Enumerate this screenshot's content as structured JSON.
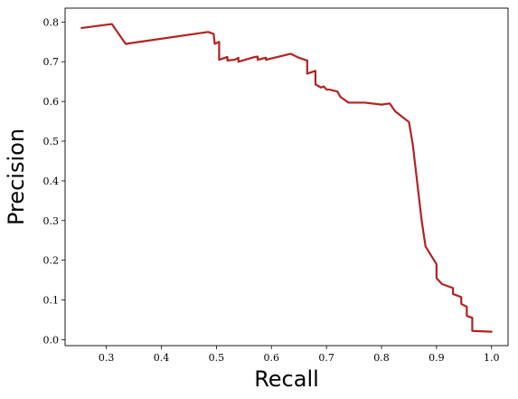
{
  "chart_data": {
    "type": "line",
    "title": "",
    "xlabel": "Recall",
    "ylabel": "Precision",
    "xlim": [
      0.225,
      1.03
    ],
    "ylim": [
      -0.015,
      0.835
    ],
    "xticks": [
      0.3,
      0.4,
      0.5,
      0.6,
      0.7,
      0.8,
      0.9,
      1.0
    ],
    "xtick_labels": [
      "0.3",
      "0.4",
      "0.5",
      "0.6",
      "0.7",
      "0.8",
      "0.9",
      "1.0"
    ],
    "yticks": [
      0.0,
      0.1,
      0.2,
      0.3,
      0.4,
      0.5,
      0.6,
      0.7,
      0.8
    ],
    "ytick_labels": [
      "0.0",
      "0.1",
      "0.2",
      "0.3",
      "0.4",
      "0.5",
      "0.6",
      "0.7",
      "0.8"
    ],
    "grid": false,
    "legend": "none",
    "series": [
      {
        "color": "#b22222",
        "x": [
          0.255,
          0.31,
          0.335,
          0.485,
          0.495,
          0.497,
          0.505,
          0.505,
          0.52,
          0.52,
          0.533,
          0.54,
          0.54,
          0.57,
          0.575,
          0.575,
          0.59,
          0.59,
          0.635,
          0.65,
          0.665,
          0.665,
          0.68,
          0.68,
          0.69,
          0.695,
          0.7,
          0.705,
          0.72,
          0.725,
          0.74,
          0.77,
          0.8,
          0.815,
          0.825,
          0.85,
          0.857,
          0.865,
          0.873,
          0.88,
          0.9,
          0.9,
          0.91,
          0.93,
          0.93,
          0.945,
          0.945,
          0.955,
          0.955,
          0.965,
          0.965,
          1.0
        ],
        "y": [
          0.785,
          0.795,
          0.745,
          0.775,
          0.77,
          0.745,
          0.75,
          0.705,
          0.712,
          0.703,
          0.705,
          0.71,
          0.7,
          0.712,
          0.713,
          0.705,
          0.71,
          0.705,
          0.72,
          0.71,
          0.703,
          0.67,
          0.677,
          0.643,
          0.635,
          0.638,
          0.63,
          0.63,
          0.625,
          0.612,
          0.597,
          0.597,
          0.592,
          0.595,
          0.575,
          0.548,
          0.49,
          0.395,
          0.3,
          0.235,
          0.19,
          0.155,
          0.14,
          0.13,
          0.115,
          0.107,
          0.09,
          0.083,
          0.06,
          0.055,
          0.022,
          0.02
        ]
      }
    ]
  }
}
